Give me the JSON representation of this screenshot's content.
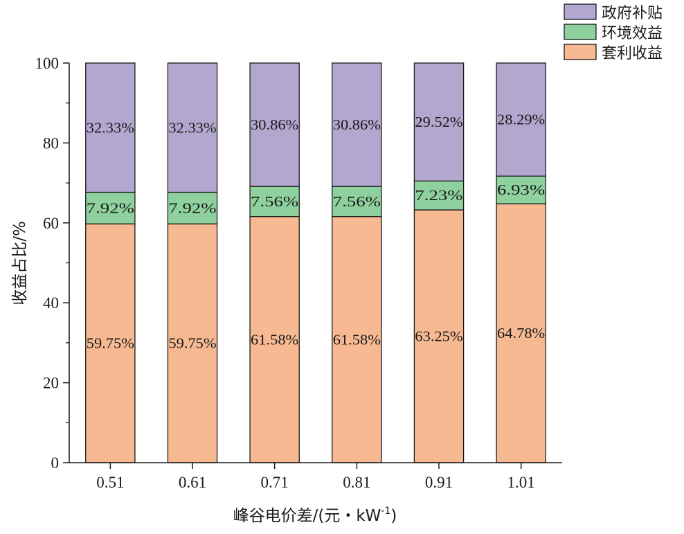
{
  "chart_data": {
    "type": "bar",
    "stacked": true,
    "xlabel": "峰谷电价差/(元・kW",
    "xlabel_sup": "-1",
    "xlabel_close": ")",
    "ylabel": "收益占比/%",
    "ylim": [
      0,
      100
    ],
    "yticks": [
      "0",
      "20",
      "40",
      "60",
      "80",
      "100"
    ],
    "categories": [
      "0.51",
      "0.61",
      "0.71",
      "0.81",
      "0.91",
      "1.01"
    ],
    "series": [
      {
        "name": "套利收益",
        "color": "#f6b992",
        "values": [
          59.75,
          59.75,
          61.58,
          61.58,
          63.25,
          64.78
        ],
        "labels": [
          "59.75%",
          "59.75%",
          "61.58%",
          "61.58%",
          "63.25%",
          "64.78%"
        ]
      },
      {
        "name": "环境效益",
        "color": "#8fd19e",
        "values": [
          7.92,
          7.92,
          7.56,
          7.56,
          7.23,
          6.93
        ],
        "labels": [
          "7.92%",
          "7.92%",
          "7.56%",
          "7.56%",
          "7.23%",
          "6.93%"
        ]
      },
      {
        "name": "政府补贴",
        "color": "#b3a6cf",
        "values": [
          32.33,
          32.33,
          30.86,
          30.86,
          29.52,
          28.29
        ],
        "labels": [
          "32.33%",
          "32.33%",
          "30.86%",
          "30.86%",
          "29.52%",
          "28.29%"
        ]
      }
    ],
    "legend": {
      "position": "top-right",
      "order": [
        "政府补贴",
        "环境效益",
        "套利收益"
      ]
    },
    "grid": false
  }
}
